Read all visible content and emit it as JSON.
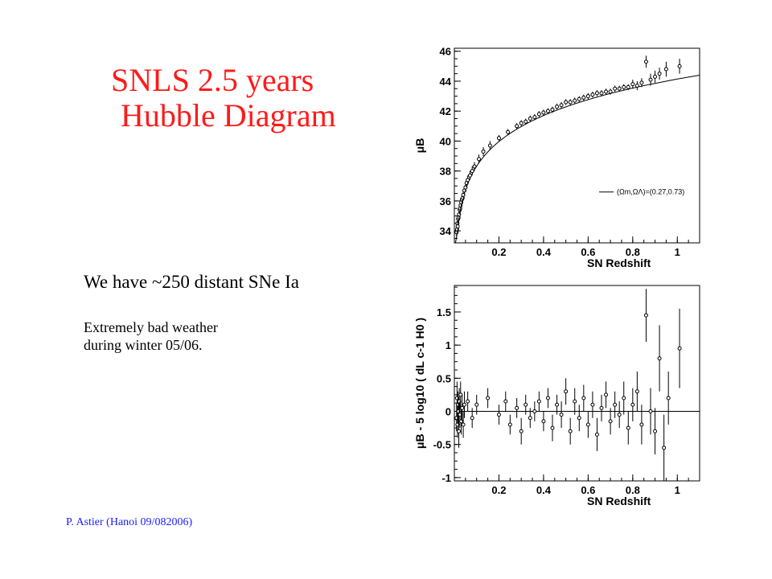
{
  "slide": {
    "title_line1": "SNLS 2.5 years",
    "title_line2": "Hubble Diagram",
    "text1": "We have ~250 distant SNe Ia",
    "text2_line1": "Extremely bad weather",
    "text2_line2": "during winter 05/06.",
    "footer": "P. Astier (Hanoi 09/082006)"
  },
  "chart_data": [
    {
      "type": "scatter",
      "xlabel": "SN Redshift",
      "ylabel": "μB",
      "xlim": [
        0,
        1.1
      ],
      "ylim": [
        33.2,
        46.2
      ],
      "xticks": [
        "0.2",
        "0.4",
        "0.6",
        "0.8",
        "1"
      ],
      "xtick_values": [
        0.2,
        0.4,
        0.6,
        0.8,
        1.0
      ],
      "yticks": [
        "34",
        "36",
        "38",
        "40",
        "42",
        "44",
        "46"
      ],
      "ytick_values": [
        34,
        36,
        38,
        40,
        42,
        44,
        46
      ],
      "legend": {
        "label": "(Ωm,ΩΛ)=(0.27,0.73)",
        "placement": "center-right"
      },
      "model": {
        "omega_m": 0.27,
        "omega_lambda": 0.73
      },
      "series": [
        {
          "points": [
            [
              0.01,
              33.9,
              0.3
            ],
            [
              0.012,
              34.1,
              0.3
            ],
            [
              0.014,
              34.5,
              0.3
            ],
            [
              0.015,
              34.3,
              0.3
            ],
            [
              0.017,
              34.8,
              0.3
            ],
            [
              0.019,
              34.9,
              0.3
            ],
            [
              0.021,
              35.1,
              0.3
            ],
            [
              0.024,
              35.4,
              0.3
            ],
            [
              0.026,
              35.5,
              0.3
            ],
            [
              0.028,
              35.7,
              0.3
            ],
            [
              0.031,
              35.9,
              0.3
            ],
            [
              0.034,
              36.1,
              0.3
            ],
            [
              0.037,
              36.2,
              0.3
            ],
            [
              0.04,
              36.4,
              0.3
            ],
            [
              0.045,
              36.7,
              0.3
            ],
            [
              0.05,
              36.9,
              0.3
            ],
            [
              0.055,
              37.2,
              0.3
            ],
            [
              0.06,
              37.4,
              0.3
            ],
            [
              0.07,
              37.7,
              0.3
            ],
            [
              0.08,
              38.0,
              0.3
            ],
            [
              0.09,
              38.3,
              0.3
            ],
            [
              0.11,
              38.8,
              0.3
            ],
            [
              0.13,
              39.3,
              0.3
            ],
            [
              0.16,
              39.7,
              0.3
            ],
            [
              0.2,
              40.2,
              0.2
            ],
            [
              0.24,
              40.6,
              0.2
            ],
            [
              0.28,
              41.0,
              0.2
            ],
            [
              0.3,
              41.2,
              0.2
            ],
            [
              0.32,
              41.3,
              0.2
            ],
            [
              0.34,
              41.5,
              0.2
            ],
            [
              0.36,
              41.6,
              0.2
            ],
            [
              0.38,
              41.8,
              0.2
            ],
            [
              0.4,
              41.9,
              0.2
            ],
            [
              0.42,
              42.0,
              0.2
            ],
            [
              0.44,
              42.1,
              0.2
            ],
            [
              0.46,
              42.3,
              0.2
            ],
            [
              0.48,
              42.4,
              0.2
            ],
            [
              0.5,
              42.6,
              0.2
            ],
            [
              0.52,
              42.6,
              0.2
            ],
            [
              0.54,
              42.7,
              0.2
            ],
            [
              0.56,
              42.8,
              0.2
            ],
            [
              0.58,
              42.9,
              0.2
            ],
            [
              0.6,
              43.0,
              0.2
            ],
            [
              0.62,
              43.1,
              0.2
            ],
            [
              0.64,
              43.2,
              0.2
            ],
            [
              0.66,
              43.2,
              0.2
            ],
            [
              0.68,
              43.3,
              0.2
            ],
            [
              0.7,
              43.3,
              0.2
            ],
            [
              0.72,
              43.5,
              0.2
            ],
            [
              0.74,
              43.5,
              0.2
            ],
            [
              0.76,
              43.6,
              0.2
            ],
            [
              0.78,
              43.6,
              0.2
            ],
            [
              0.8,
              43.8,
              0.3
            ],
            [
              0.82,
              43.7,
              0.3
            ],
            [
              0.84,
              43.9,
              0.3
            ],
            [
              0.86,
              45.3,
              0.4
            ],
            [
              0.88,
              44.1,
              0.4
            ],
            [
              0.9,
              44.3,
              0.4
            ],
            [
              0.92,
              44.5,
              0.4
            ],
            [
              0.95,
              44.8,
              0.5
            ],
            [
              1.01,
              45.0,
              0.5
            ]
          ]
        }
      ]
    },
    {
      "type": "scatter",
      "xlabel": "SN Redshift",
      "ylabel": "μB - 5 log10 ( dL c-1 H0 )",
      "xlim": [
        0,
        1.1
      ],
      "ylim": [
        -1.05,
        1.9
      ],
      "xticks": [
        "0.2",
        "0.4",
        "0.6",
        "0.8",
        "1"
      ],
      "xtick_values": [
        0.2,
        0.4,
        0.6,
        0.8,
        1.0
      ],
      "yticks": [
        "-1",
        "-0.5",
        "0",
        "0.5",
        "1",
        "1.5"
      ],
      "ytick_values": [
        -1,
        -0.5,
        0,
        0.5,
        1,
        1.5
      ],
      "reference_line": 0,
      "series": [
        {
          "points": [
            [
              0.01,
              -0.1,
              0.2
            ],
            [
              0.012,
              0.2,
              0.25
            ],
            [
              0.014,
              -0.2,
              0.2
            ],
            [
              0.016,
              0.1,
              0.2
            ],
            [
              0.018,
              0.0,
              0.2
            ],
            [
              0.02,
              -0.3,
              0.25
            ],
            [
              0.022,
              0.15,
              0.2
            ],
            [
              0.025,
              -0.05,
              0.2
            ],
            [
              0.028,
              0.25,
              0.2
            ],
            [
              0.031,
              -0.15,
              0.2
            ],
            [
              0.035,
              0.05,
              0.2
            ],
            [
              0.04,
              -0.2,
              0.2
            ],
            [
              0.045,
              0.1,
              0.2
            ],
            [
              0.06,
              0.15,
              0.15
            ],
            [
              0.08,
              -0.1,
              0.15
            ],
            [
              0.1,
              0.1,
              0.15
            ],
            [
              0.15,
              0.2,
              0.15
            ],
            [
              0.2,
              -0.05,
              0.15
            ],
            [
              0.23,
              0.15,
              0.15
            ],
            [
              0.25,
              -0.2,
              0.15
            ],
            [
              0.28,
              0.05,
              0.15
            ],
            [
              0.3,
              -0.3,
              0.2
            ],
            [
              0.32,
              0.1,
              0.15
            ],
            [
              0.34,
              -0.1,
              0.15
            ],
            [
              0.36,
              0.0,
              0.15
            ],
            [
              0.38,
              0.15,
              0.15
            ],
            [
              0.4,
              -0.15,
              0.15
            ],
            [
              0.42,
              0.2,
              0.15
            ],
            [
              0.44,
              -0.25,
              0.2
            ],
            [
              0.46,
              0.1,
              0.15
            ],
            [
              0.48,
              -0.05,
              0.2
            ],
            [
              0.5,
              0.3,
              0.2
            ],
            [
              0.52,
              -0.3,
              0.2
            ],
            [
              0.54,
              0.15,
              0.2
            ],
            [
              0.56,
              -0.1,
              0.2
            ],
            [
              0.58,
              0.2,
              0.2
            ],
            [
              0.6,
              -0.2,
              0.2
            ],
            [
              0.62,
              0.1,
              0.2
            ],
            [
              0.64,
              -0.35,
              0.25
            ],
            [
              0.66,
              0.05,
              0.2
            ],
            [
              0.68,
              0.25,
              0.2
            ],
            [
              0.7,
              -0.15,
              0.2
            ],
            [
              0.72,
              0.1,
              0.2
            ],
            [
              0.74,
              -0.05,
              0.2
            ],
            [
              0.76,
              0.2,
              0.25
            ],
            [
              0.78,
              -0.25,
              0.25
            ],
            [
              0.8,
              0.1,
              0.25
            ],
            [
              0.82,
              0.3,
              0.3
            ],
            [
              0.84,
              -0.2,
              0.3
            ],
            [
              0.86,
              1.45,
              0.4
            ],
            [
              0.88,
              0.0,
              0.35
            ],
            [
              0.9,
              -0.3,
              0.35
            ],
            [
              0.92,
              0.8,
              0.5
            ],
            [
              0.94,
              -0.55,
              0.5
            ],
            [
              0.96,
              0.2,
              0.4
            ],
            [
              1.01,
              0.95,
              0.6
            ]
          ]
        }
      ]
    }
  ]
}
